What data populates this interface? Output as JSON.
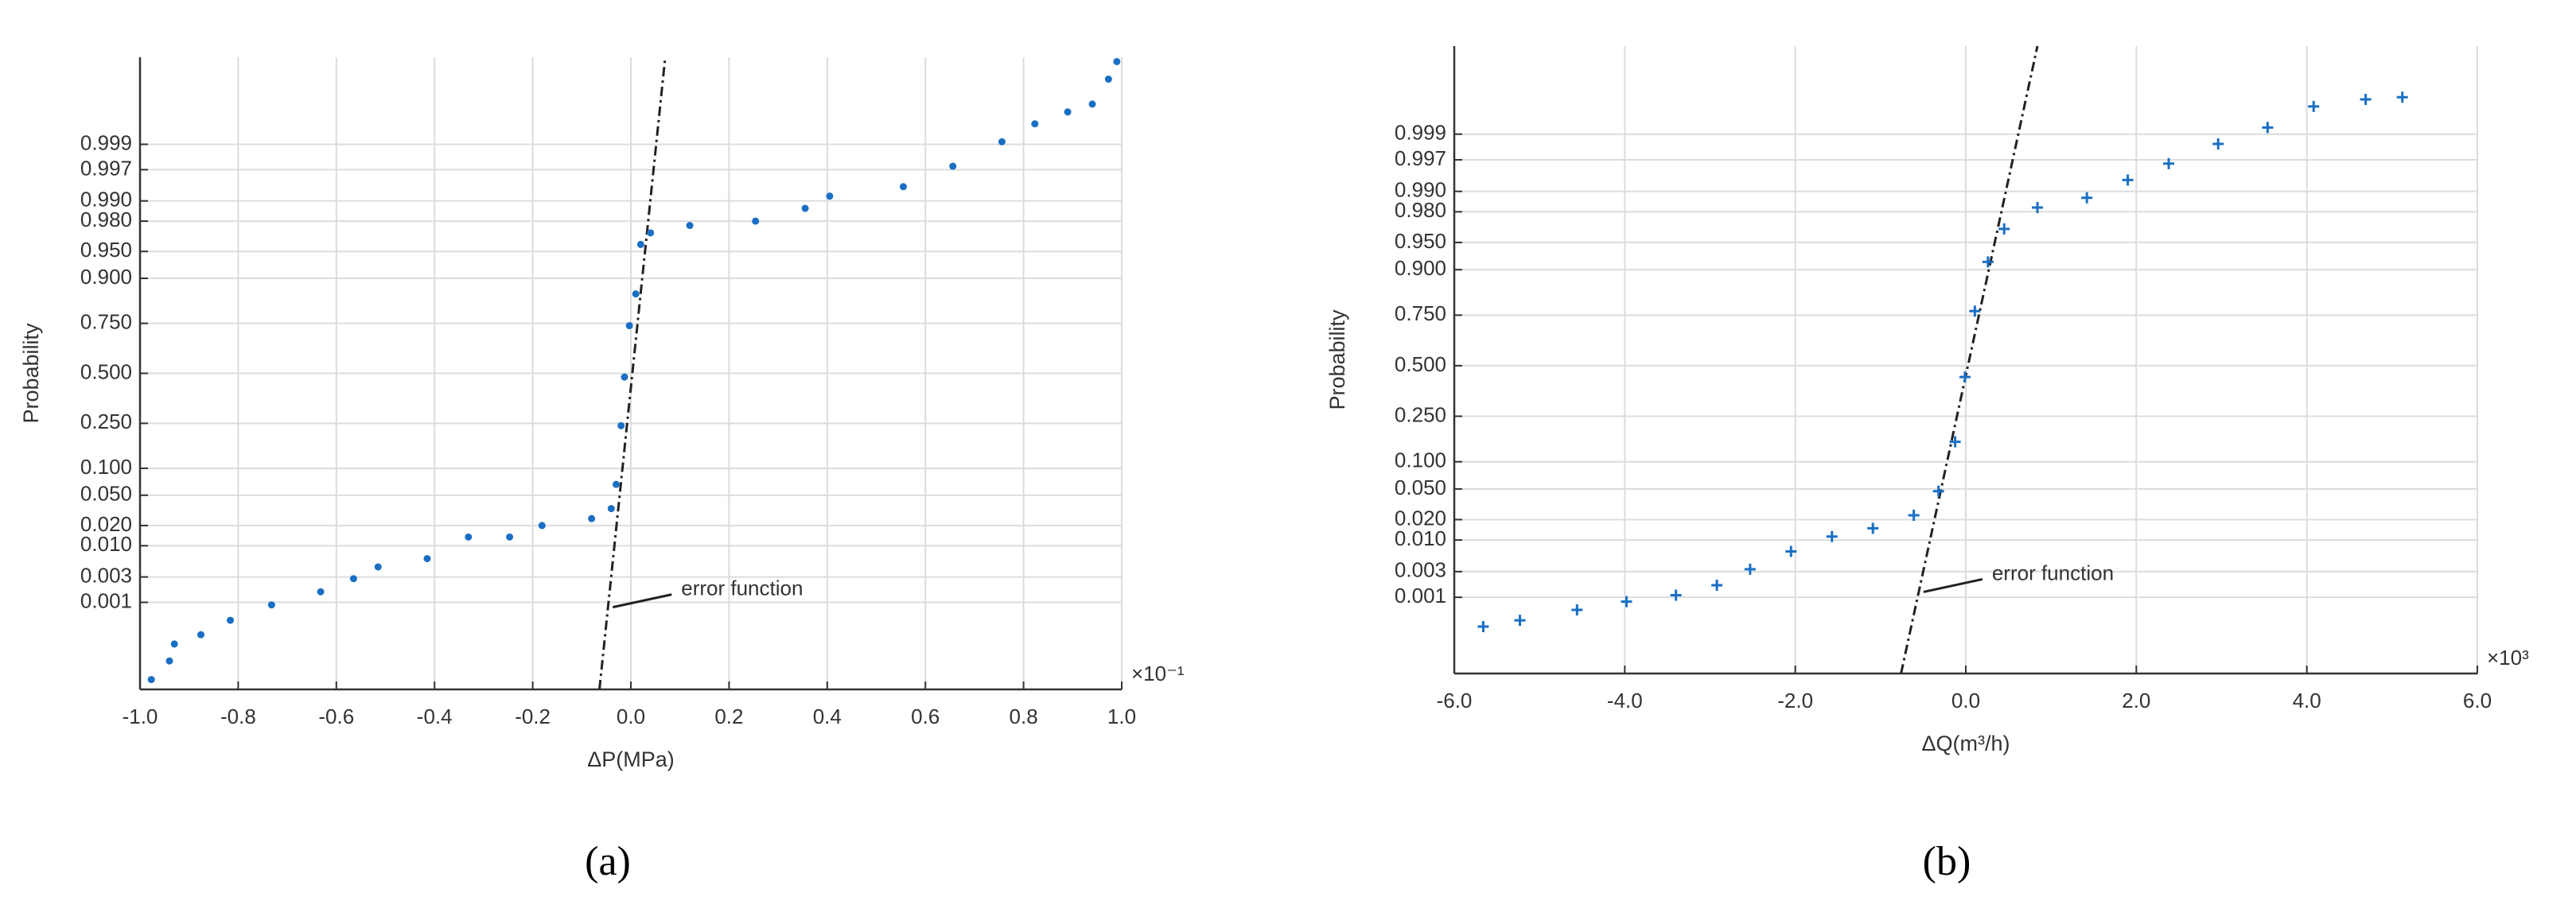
{
  "chart_data": [
    {
      "type": "scatter",
      "yscale": "normal-probability",
      "grid": true,
      "color": "#1a6fc4",
      "marker": "dot",
      "xlabel": "ΔP(MPa)",
      "ylabel": "Probability",
      "x_multiplier": "×10⁻¹",
      "panel_label": "(a)",
      "annotation": "error function",
      "xlim": [
        -1,
        1
      ],
      "xticks": [
        {
          "value": -1,
          "label": "-1.0"
        },
        -0.8,
        -0.6,
        -0.4,
        -0.2,
        {
          "value": 0,
          "label": "0.0"
        },
        0.2,
        0.4,
        0.6,
        0.8,
        {
          "value": 1,
          "label": "1.0"
        }
      ],
      "ylim": [
        1e-05,
        0.99999
      ],
      "yticks": [
        0.001,
        0.003,
        {
          "value": 0.01,
          "label": "0.010"
        },
        {
          "value": 0.02,
          "label": "0.020"
        },
        {
          "value": 0.05,
          "label": "0.050"
        },
        {
          "value": 0.1,
          "label": "0.100"
        },
        {
          "value": 0.25,
          "label": "0.250"
        },
        {
          "value": 0.5,
          "label": "0.500"
        },
        {
          "value": 0.75,
          "label": "0.750"
        },
        {
          "value": 0.9,
          "label": "0.900"
        },
        {
          "value": 0.95,
          "label": "0.950"
        },
        {
          "value": 0.98,
          "label": "0.980"
        },
        {
          "value": 0.99,
          "label": "0.990"
        },
        0.997,
        0.999
      ],
      "x": [
        -0.977,
        -0.94,
        -0.93,
        -0.876,
        -0.816,
        -0.732,
        -0.632,
        -0.565,
        -0.515,
        -0.415,
        -0.331,
        -0.247,
        -0.181,
        -0.08,
        -0.04,
        -0.03,
        -0.02,
        -0.013,
        -0.003,
        0.01,
        0.02,
        0.04,
        0.12,
        0.254,
        0.355,
        0.405,
        0.555,
        0.656,
        0.756,
        0.823,
        0.89,
        0.94,
        0.973,
        0.99
      ],
      "values": [
        1.8e-05,
        5.2e-05,
        0.00013,
        0.00021,
        0.00043,
        0.00089,
        0.0016,
        0.0028,
        0.0045,
        0.0062,
        0.0136,
        0.0136,
        0.02,
        0.025,
        0.034,
        0.067,
        0.24,
        0.48,
        0.74,
        0.858,
        0.959,
        0.971,
        0.977,
        0.98,
        0.987,
        0.9916,
        0.9941,
        0.9974,
        0.99911,
        0.99962,
        0.99979,
        0.99986,
        0.999964,
        0.999987
      ],
      "fit_line": {
        "x": [
          -0.064,
          0.07
        ],
        "y": [
          1e-05,
          0.99999
        ]
      }
    },
    {
      "type": "scatter",
      "yscale": "normal-probability",
      "grid": true,
      "color": "#1a6fc4",
      "marker": "plus",
      "xlabel": "ΔQ(m³/h)",
      "ylabel": "Probability",
      "x_multiplier": "×10³",
      "panel_label": "(b)",
      "annotation": "error function",
      "xlim": [
        -6,
        6
      ],
      "xticks": [
        {
          "value": -6,
          "label": "-6.0"
        },
        {
          "value": -4,
          "label": "-4.0"
        },
        {
          "value": -2,
          "label": "-2.0"
        },
        {
          "value": 0,
          "label": "0.0"
        },
        {
          "value": 2,
          "label": "2.0"
        },
        {
          "value": 4,
          "label": "4.0"
        },
        {
          "value": 6,
          "label": "6.0"
        }
      ],
      "ylim": [
        2e-05,
        0.99999
      ],
      "yticks": [
        0.001,
        0.003,
        {
          "value": 0.01,
          "label": "0.010"
        },
        {
          "value": 0.02,
          "label": "0.020"
        },
        {
          "value": 0.05,
          "label": "0.050"
        },
        {
          "value": 0.1,
          "label": "0.100"
        },
        {
          "value": 0.25,
          "label": "0.250"
        },
        {
          "value": 0.5,
          "label": "0.500"
        },
        {
          "value": 0.75,
          "label": "0.750"
        },
        {
          "value": 0.9,
          "label": "0.900"
        },
        {
          "value": 0.95,
          "label": "0.950"
        },
        {
          "value": 0.98,
          "label": "0.980"
        },
        {
          "value": 0.99,
          "label": "0.990"
        },
        0.997,
        0.999
      ],
      "x": [
        -5.66,
        -5.23,
        -4.56,
        -3.98,
        -3.4,
        -2.92,
        -2.53,
        -2.05,
        -1.57,
        -1.09,
        -0.61,
        -0.32,
        -0.125,
        -0.01,
        0.106,
        0.26,
        0.45,
        0.84,
        1.42,
        1.9,
        2.38,
        2.96,
        3.54,
        4.08,
        4.69,
        5.12
      ],
      "values": [
        0.00025,
        0.00034,
        0.00056,
        0.00082,
        0.0011,
        0.0017,
        0.0033,
        0.0066,
        0.0113,
        0.015,
        0.023,
        0.047,
        0.155,
        0.44,
        0.767,
        0.917,
        0.966,
        0.9826,
        0.9875,
        0.9934,
        0.9965,
        0.99846,
        0.99926,
        0.99973,
        0.99981,
        0.99983
      ],
      "fit_line": {
        "x": [
          -0.76,
          0.84
        ],
        "y": [
          2e-05,
          0.99999
        ]
      }
    }
  ]
}
